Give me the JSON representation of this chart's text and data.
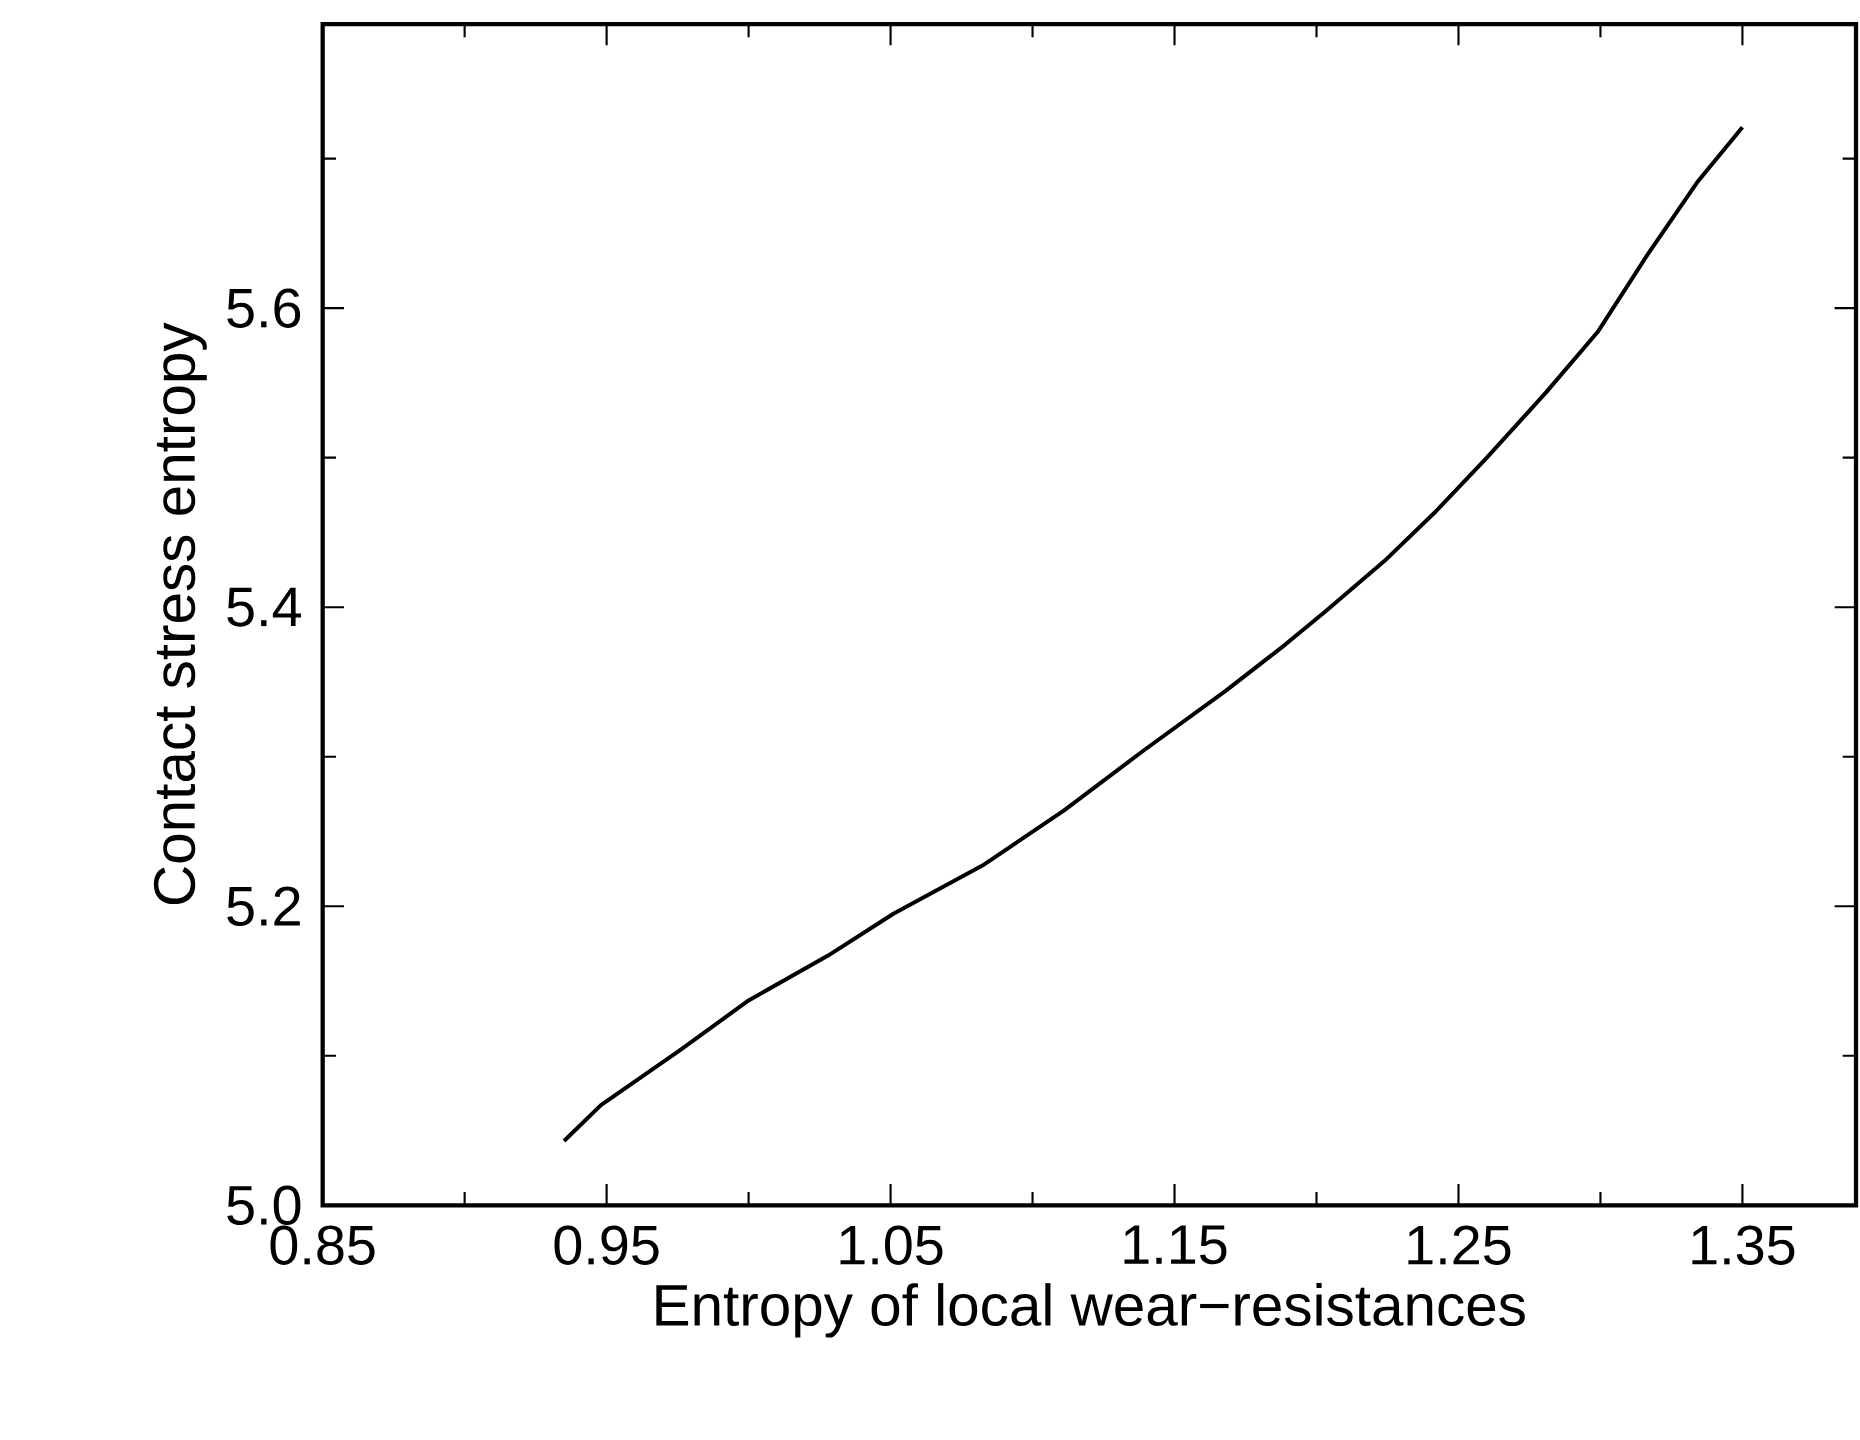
{
  "chart_data": {
    "type": "line",
    "xlabel": "Entropy of local wear−resistances",
    "ylabel": "Contact stress entropy",
    "xlim": [
      0.85,
      1.39
    ],
    "ylim": [
      5.0,
      5.79
    ],
    "xticks": [
      0.85,
      {
        "value": 0.9,
        "label": null
      },
      0.95,
      {
        "value": 1.0,
        "label": null
      },
      1.05,
      {
        "value": 1.1,
        "label": null
      },
      1.15,
      {
        "value": 1.2,
        "label": null
      },
      1.25,
      {
        "value": 1.3,
        "label": null
      },
      1.35
    ],
    "yticks": [
      {
        "value": 5.0,
        "label": "5.0"
      },
      {
        "value": 5.1,
        "label": null
      },
      5.2,
      {
        "value": 5.3,
        "label": null
      },
      5.4,
      {
        "value": 5.5,
        "label": null
      },
      5.6,
      {
        "value": 5.7,
        "label": null
      }
    ],
    "grid": false,
    "series": [
      {
        "color": "#000000",
        "x": [
          0.935,
          0.948,
          0.976,
          1.0,
          1.028,
          1.051,
          1.083,
          1.111,
          1.139,
          1.168,
          1.189,
          1.203,
          1.224,
          1.242,
          1.26,
          1.281,
          1.299,
          1.317,
          1.334,
          1.35
        ],
        "values": [
          5.043,
          5.067,
          5.104,
          5.137,
          5.167,
          5.195,
          5.228,
          5.264,
          5.304,
          5.344,
          5.375,
          5.397,
          5.431,
          5.464,
          5.5,
          5.544,
          5.584,
          5.637,
          5.684,
          5.721
        ]
      }
    ]
  }
}
